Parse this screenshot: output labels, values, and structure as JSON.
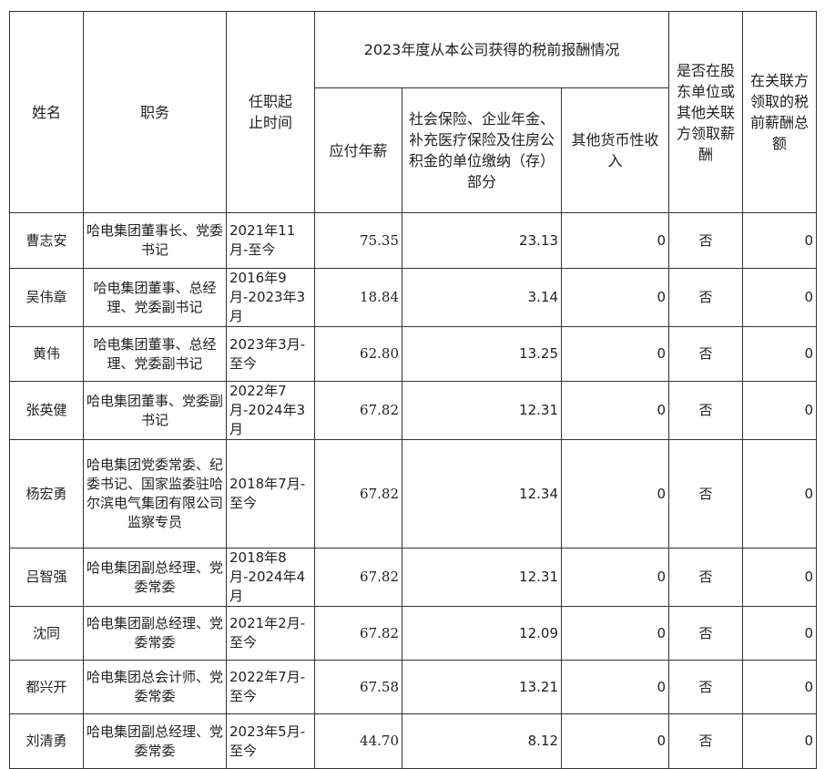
{
  "headers": {
    "name": "姓名",
    "position": "职务",
    "tenure": "任职起止时间",
    "group": "2023年度从本公司获得的税前报酬情况",
    "salary": "应付年薪",
    "social": "社会保险、企业年金、补充医疗保险及住房公积金的单位缴纳（存）部分",
    "other": "其他货币性收入",
    "related_flag": "是否在股东单位或其他关联方领取薪酬",
    "related_amount": "在关联方领取的税前薪酬总额"
  },
  "rows": [
    {
      "name": "曹志安",
      "position": "哈电集团董事长、党委书记",
      "tenure": "2021年11月-至今",
      "salary": "75.35",
      "social": "23.13",
      "other": "0",
      "related_flag": "否",
      "related_amount": "0"
    },
    {
      "name": "吴伟章",
      "position": "哈电集团董事、总经理、党委副书记",
      "tenure": "2016年9月-2023年3月",
      "salary": "18.84",
      "social": "3.14",
      "other": "0",
      "related_flag": "否",
      "related_amount": "0"
    },
    {
      "name": "黄伟",
      "position": "哈电集团董事、总经理、党委副书记",
      "tenure": "2023年3月-至今",
      "salary": "62.80",
      "social": "13.25",
      "other": "0",
      "related_flag": "否",
      "related_amount": "0"
    },
    {
      "name": "张英健",
      "position": "哈电集团董事、党委副书记",
      "tenure": "2022年7月-2024年3月",
      "salary": "67.82",
      "social": "12.31",
      "other": "0",
      "related_flag": "否",
      "related_amount": "0"
    },
    {
      "name": "杨宏勇",
      "position": "哈电集团党委常委、纪委书记、国家监委驻哈尔滨电气集团有限公司监察专员",
      "tenure": "2018年7月-至今",
      "salary": "67.82",
      "social": "12.34",
      "other": "0",
      "related_flag": "否",
      "related_amount": "0"
    },
    {
      "name": "吕智强",
      "position": "哈电集团副总经理、党委常委",
      "tenure": "2018年8月-2024年4月",
      "salary": "67.82",
      "social": "12.31",
      "other": "0",
      "related_flag": "否",
      "related_amount": "0"
    },
    {
      "name": "沈同",
      "position": "哈电集团副总经理、党委常委",
      "tenure": "2021年2月-至今",
      "salary": "67.82",
      "social": "12.09",
      "other": "0",
      "related_flag": "否",
      "related_amount": "0"
    },
    {
      "name": "都兴开",
      "position": "哈电集团总会计师、党委常委",
      "tenure": "2022年7月-至今",
      "salary": "67.58",
      "social": "13.21",
      "other": "0",
      "related_flag": "否",
      "related_amount": "0"
    },
    {
      "name": "刘清勇",
      "position": "哈电集团副总经理、党委常委",
      "tenure": "2023年5月-至今",
      "salary": "44.70",
      "social": "8.12",
      "other": "0",
      "related_flag": "否",
      "related_amount": "0"
    }
  ]
}
